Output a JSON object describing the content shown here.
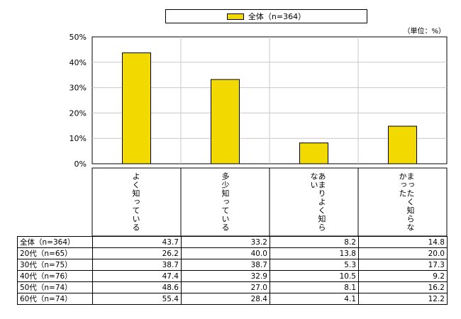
{
  "unit_label": "（単位：%）",
  "chart_data": {
    "type": "bar",
    "categories": [
      "よく知っている",
      "多少知っている",
      "あまりよく知らない",
      "まったく知らなかった"
    ],
    "series": [
      {
        "name": "全体（n=364）",
        "values": [
          43.7,
          33.2,
          8.2,
          14.8
        ],
        "color": "#f2d900"
      }
    ],
    "ylim": [
      0,
      50
    ],
    "yticks": [
      "0%",
      "10%",
      "20%",
      "30%",
      "40%",
      "50%"
    ],
    "grid": true,
    "legend_position": "top"
  },
  "table": {
    "rows": [
      {
        "label": "全体（n=364）",
        "values": [
          "43.7",
          "33.2",
          "8.2",
          "14.8"
        ]
      },
      {
        "label": "20代（n=65）",
        "values": [
          "26.2",
          "40.0",
          "13.8",
          "20.0"
        ]
      },
      {
        "label": "30代（n=75）",
        "values": [
          "38.7",
          "38.7",
          "5.3",
          "17.3"
        ]
      },
      {
        "label": "40代（n=76）",
        "values": [
          "47.4",
          "32.9",
          "10.5",
          "9.2"
        ]
      },
      {
        "label": "50代（n=74）",
        "values": [
          "48.6",
          "27.0",
          "8.1",
          "16.2"
        ]
      },
      {
        "label": "60代（n=74）",
        "values": [
          "55.4",
          "28.4",
          "4.1",
          "12.2"
        ]
      }
    ]
  }
}
